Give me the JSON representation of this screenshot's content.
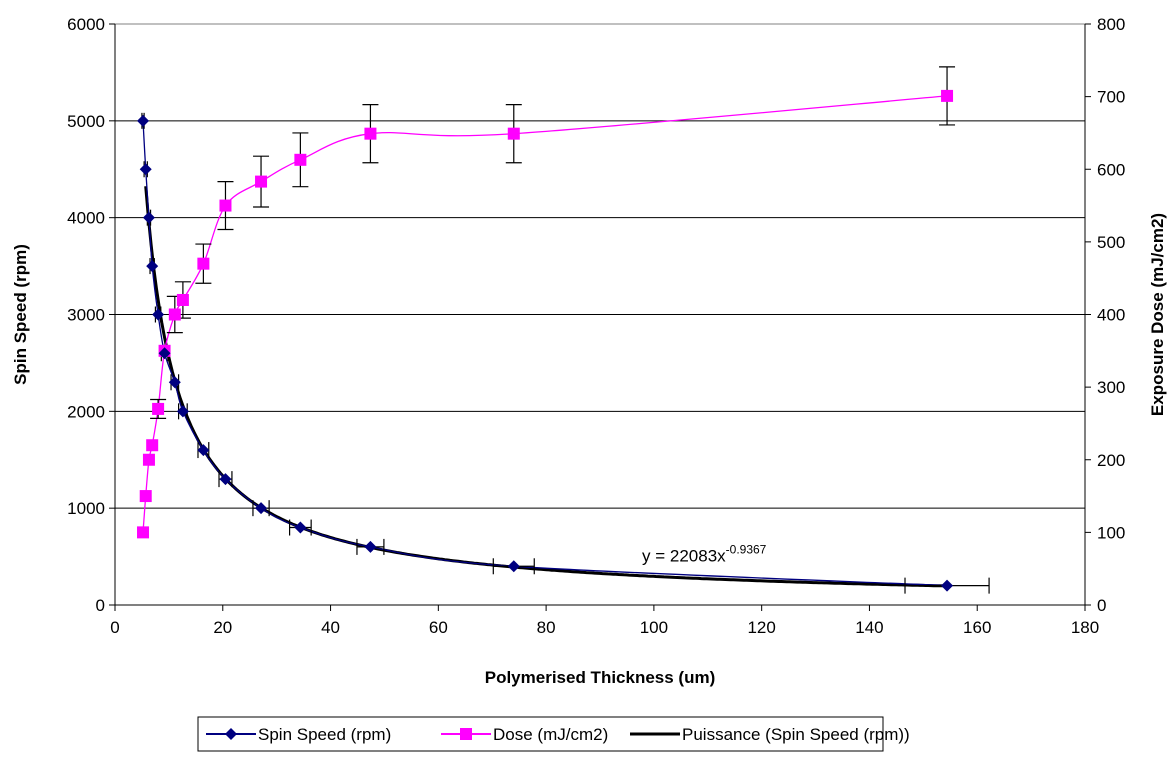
{
  "chart_data": {
    "type": "scatter",
    "xlabel": "Polymerised Thickness (um)",
    "ylabel": "Spin Speed (rpm)",
    "y2label": "Exposure Dose (mJ/cm2)",
    "xlim": [
      0,
      180
    ],
    "ylim": [
      0,
      6000
    ],
    "y2lim": [
      0,
      800
    ],
    "x_ticks": [
      "0",
      "20",
      "40",
      "60",
      "80",
      "100",
      "120",
      "140",
      "160",
      "180"
    ],
    "y_ticks": [
      "0",
      "1000",
      "2000",
      "3000",
      "4000",
      "5000",
      "6000"
    ],
    "y2_ticks": [
      "0",
      "100",
      "200",
      "300",
      "400",
      "500",
      "600",
      "700",
      "800"
    ],
    "gridlines": "horizontal",
    "legend_position": "bottom",
    "series": [
      {
        "name": "Spin Speed (rpm)",
        "axis": "left",
        "color": "#000080",
        "marker": "diamond",
        "x": [
          5.2,
          5.7,
          6.3,
          6.9,
          8.0,
          9.2,
          11.1,
          12.6,
          16.4,
          20.5,
          27.1,
          34.4,
          47.4,
          74.0,
          154.4
        ],
        "y": [
          5000,
          4500,
          4000,
          3500,
          3000,
          2600,
          2300,
          2000,
          1600,
          1300,
          1000,
          800,
          600,
          400,
          200
        ],
        "x_error": [
          0.2,
          0.3,
          0.3,
          0.4,
          0.5,
          0.6,
          0.7,
          0.8,
          1.0,
          1.2,
          1.5,
          2.0,
          2.5,
          3.8,
          7.8
        ]
      },
      {
        "name": "Dose (mJ/cm2)",
        "axis": "right",
        "color": "#ff00ff",
        "marker": "square",
        "x": [
          5.2,
          5.7,
          6.3,
          6.9,
          8.0,
          9.2,
          11.1,
          12.6,
          16.4,
          20.5,
          27.1,
          34.4,
          47.4,
          74.0,
          154.4
        ],
        "y": [
          100,
          150,
          200,
          220,
          270,
          350,
          400,
          420,
          470,
          550,
          583,
          613,
          649,
          649,
          701
        ],
        "y_error": [
          0,
          0,
          0,
          0,
          13,
          0,
          25,
          25,
          27,
          33,
          35,
          37,
          40,
          40,
          40
        ]
      },
      {
        "name": "Puissance (Spin Speed (rpm))",
        "axis": "left",
        "color": "#000000",
        "marker": "none",
        "fit": {
          "type": "power",
          "a": 22083,
          "b": -0.9367
        },
        "x_range": [
          5.7,
          154.4
        ]
      }
    ],
    "annotations": [
      {
        "text_base": "y = 22083x",
        "text_exp": "-0.9367",
        "x": 108,
        "y": 500
      }
    ]
  }
}
